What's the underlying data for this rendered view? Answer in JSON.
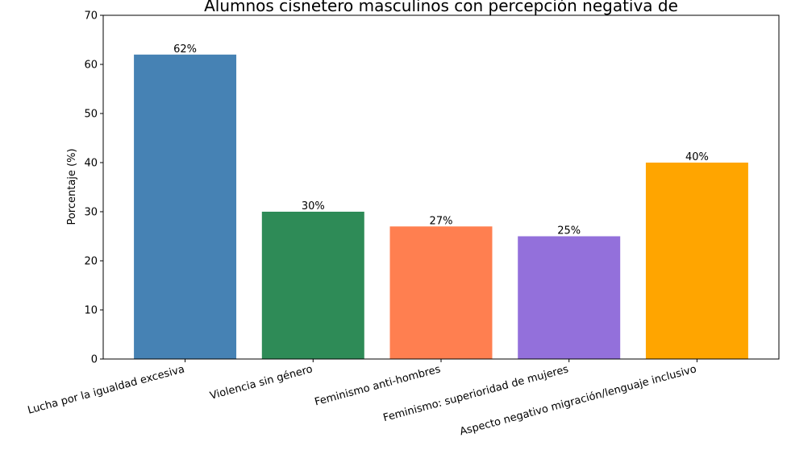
{
  "chart_data": {
    "type": "bar",
    "title": "Alumnos cisnetero masculinos con percepción negativa de",
    "xlabel": "",
    "ylabel": "Porcentaje (%)",
    "categories": [
      "Lucha por la igualdad excesiva",
      "Violencia sin género",
      "Feminismo anti-hombres",
      "Feminismo: superioridad de mujeres",
      "Aspecto negativo migración/lenguaje inclusivo"
    ],
    "values": [
      62,
      30,
      27,
      25,
      40
    ],
    "data_labels": [
      "62%",
      "30%",
      "27%",
      "25%",
      "40%"
    ],
    "colors": [
      "#4682b4",
      "#2e8b57",
      "#ff7f50",
      "#9370db",
      "#ffa500"
    ],
    "ylim": [
      0,
      70
    ],
    "yticks": [
      0,
      10,
      20,
      30,
      40,
      50,
      60,
      70
    ],
    "grid": false
  }
}
